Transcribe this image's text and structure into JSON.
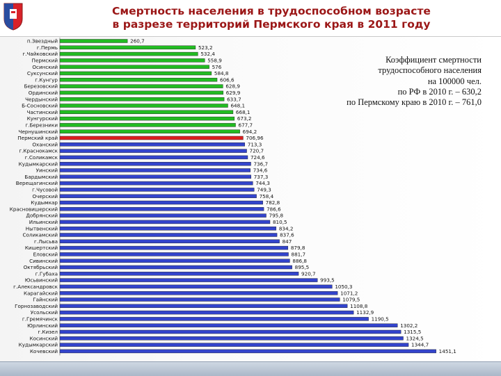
{
  "header": {
    "title_line1": "Смертность населения в трудоспособном возрасте",
    "title_line2": "в разрезе территорий Пермского края в 2011 году"
  },
  "note": {
    "line1": "Коэффициент смертности",
    "line2": "трудоспособного населения",
    "line3": "на 100000 чел.",
    "line4": "по РФ в 2010 г. – 630,2",
    "line5": "по Пермскому краю в 2010 г. – 761,0"
  },
  "colors": {
    "green": "#22bb22",
    "red": "#dd1f1f",
    "blue": "#3344cc",
    "title": "#9b1717"
  },
  "chart_data": {
    "type": "bar",
    "orientation": "horizontal",
    "xlim": [
      0,
      1500
    ],
    "grid": false,
    "categories": [
      "п.Звездный",
      "г.Пермь",
      "г.Чайковский",
      "Пермский",
      "Осинский",
      "Суксунский",
      "г.Кунгур",
      "Березовский",
      "Ординский",
      "Чердынский",
      "Б-Сосновский",
      "Частинский",
      "Кунгурский",
      "г.Березники",
      "Чернушинский",
      "Пермский край",
      "Оханский",
      "г.Краснокамск",
      "г.Соликамск",
      "Кудымкарский",
      "Уинский",
      "Бардымский",
      "Верещагинский",
      "г.Чусовой",
      "Очерский",
      "Кудымкар",
      "Красновишерский",
      "Добрянский",
      "Ильинский",
      "Нытвенский",
      "Соликамский",
      "г.Лысьва",
      "Кишертский",
      "Еловский",
      "Сивинский",
      "Октябрьский",
      "г.Губаха",
      "Юсьвинский",
      "г.Александровск",
      "Карагайский",
      "Гайнский",
      "Горнозаводский",
      "Усольский",
      "г.Гремячинск",
      "Юрлинский",
      "г.Кизел",
      "Косинский",
      "Кудымкарский",
      "Кочевский"
    ],
    "values": [
      260.7,
      523.2,
      532.4,
      558.9,
      576,
      584.8,
      606.6,
      628.9,
      629.9,
      633.7,
      648.1,
      668.1,
      673.2,
      677.7,
      694.2,
      706.96,
      713.3,
      720.7,
      724.6,
      736.7,
      734.6,
      737.3,
      744.3,
      749.3,
      758.4,
      782.8,
      786.6,
      795.8,
      810.5,
      834.2,
      837.6,
      847,
      879.8,
      881.7,
      886.8,
      895.5,
      920.7,
      993.5,
      1050.3,
      1071.2,
      1079.5,
      1108.8,
      1132.9,
      1190.5,
      1302.2,
      1315.5,
      1324.5,
      1344.7,
      1451.1
    ],
    "labels": [
      "260,7",
      "523,2",
      "532,4",
      "558,9",
      "576",
      "584,8",
      "606,6",
      "628,9",
      "629,9",
      "633,7",
      "648,1",
      "668,1",
      "673,2",
      "677,7",
      "694,2",
      "706,96",
      "713,3",
      "720,7",
      "724,6",
      "736,7",
      "734,6",
      "737,3",
      "744,3",
      "749,3",
      "758,4",
      "782,8",
      "786,6",
      "795,8",
      "810,5",
      "834,2",
      "837,6",
      "847",
      "879,8",
      "881,7",
      "886,8",
      "895,5",
      "920,7",
      "993,5",
      "1050,3",
      "1071,2",
      "1079,5",
      "1108,8",
      "1132,9",
      "1190,5",
      "1302,2",
      "1315,5",
      "1324,5",
      "1344,7",
      "1451,1"
    ],
    "bar_groups": [
      "green",
      "green",
      "green",
      "green",
      "green",
      "green",
      "green",
      "green",
      "green",
      "green",
      "green",
      "green",
      "green",
      "green",
      "green",
      "red",
      "blue",
      "blue",
      "blue",
      "blue",
      "blue",
      "blue",
      "blue",
      "blue",
      "blue",
      "blue",
      "blue",
      "blue",
      "blue",
      "blue",
      "blue",
      "blue",
      "blue",
      "blue",
      "blue",
      "blue",
      "blue",
      "blue",
      "blue",
      "blue",
      "blue",
      "blue",
      "blue",
      "blue",
      "blue",
      "blue",
      "blue",
      "blue",
      "blue"
    ]
  }
}
